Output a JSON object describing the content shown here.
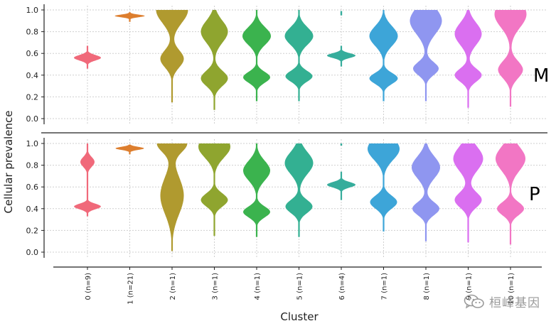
{
  "chart_data": {
    "type": "violin",
    "xlabel": "Cluster",
    "ylabel": "Cellular prevalence",
    "ylim": [
      0,
      1
    ],
    "yticks": [
      "0.0",
      "0.2",
      "0.4",
      "0.6",
      "0.8",
      "1.0"
    ],
    "categories": [
      "0 (n=9)",
      "1 (n=21)",
      "2 (n=1)",
      "3 (n=1)",
      "4 (n=1)",
      "5 (n=1)",
      "6 (n=4)",
      "7 (n=1)",
      "8 (n=1)",
      "9 (n=1)",
      "10 (n=1)"
    ],
    "colors": [
      "#f0697a",
      "#dd7e2e",
      "#b09a2f",
      "#8fa52f",
      "#3bb34e",
      "#33b092",
      "#36ad9c",
      "#3da5d8",
      "#8f96f0",
      "#da6ff0",
      "#f276c4"
    ],
    "panels": [
      {
        "label": "M",
        "violins": [
          {
            "modes": [
              {
                "c": 0.56,
                "s": 0.025,
                "w": 0.38
              }
            ],
            "range": [
              0.46,
              0.67
            ]
          },
          {
            "modes": [
              {
                "c": 0.945,
                "s": 0.012,
                "w": 0.42
              }
            ],
            "range": [
              0.89,
              0.98
            ]
          },
          {
            "modes": [
              {
                "c": 0.55,
                "s": 0.08,
                "w": 0.33
              },
              {
                "c": 1.0,
                "s": 0.12,
                "w": 0.45
              }
            ],
            "range": [
              0.15,
              1.0
            ]
          },
          {
            "modes": [
              {
                "c": 0.37,
                "s": 0.07,
                "w": 0.38
              },
              {
                "c": 0.8,
                "s": 0.1,
                "w": 0.38
              }
            ],
            "range": [
              0.08,
              1.0
            ]
          },
          {
            "modes": [
              {
                "c": 0.38,
                "s": 0.05,
                "w": 0.38
              },
              {
                "c": 0.76,
                "s": 0.08,
                "w": 0.4
              }
            ],
            "range": [
              0.16,
              1.0
            ]
          },
          {
            "modes": [
              {
                "c": 0.39,
                "s": 0.05,
                "w": 0.38
              },
              {
                "c": 0.76,
                "s": 0.08,
                "w": 0.4
              }
            ],
            "range": [
              0.16,
              1.0
            ]
          },
          {
            "modes": [
              {
                "c": 0.58,
                "s": 0.022,
                "w": 0.4
              }
            ],
            "range": [
              0.48,
              0.67
            ],
            "extra": [
              0.95,
              0.99
            ]
          },
          {
            "modes": [
              {
                "c": 0.37,
                "s": 0.05,
                "w": 0.4
              },
              {
                "c": 0.76,
                "s": 0.09,
                "w": 0.4
              }
            ],
            "range": [
              0.16,
              1.0
            ]
          },
          {
            "modes": [
              {
                "c": 0.46,
                "s": 0.06,
                "w": 0.36
              },
              {
                "c": 0.9,
                "s": 0.12,
                "w": 0.45
              }
            ],
            "range": [
              0.16,
              1.0
            ]
          },
          {
            "modes": [
              {
                "c": 0.4,
                "s": 0.06,
                "w": 0.38
              },
              {
                "c": 0.78,
                "s": 0.1,
                "w": 0.38
              }
            ],
            "range": [
              0.1,
              1.0
            ]
          },
          {
            "modes": [
              {
                "c": 0.45,
                "s": 0.08,
                "w": 0.35
              },
              {
                "c": 0.96,
                "s": 0.12,
                "w": 0.45
              }
            ],
            "range": [
              0.11,
              1.0
            ]
          }
        ]
      },
      {
        "label": "P",
        "violins": [
          {
            "modes": [
              {
                "c": 0.42,
                "s": 0.025,
                "w": 0.38
              },
              {
                "c": 0.83,
                "s": 0.045,
                "w": 0.2
              }
            ],
            "range": [
              0.33,
              1.0
            ]
          },
          {
            "modes": [
              {
                "c": 0.955,
                "s": 0.014,
                "w": 0.4
              }
            ],
            "range": [
              0.9,
              0.99
            ]
          },
          {
            "modes": [
              {
                "c": 0.52,
                "s": 0.17,
                "w": 0.33
              },
              {
                "c": 1.0,
                "s": 0.08,
                "w": 0.42
              }
            ],
            "range": [
              0.01,
              1.0
            ]
          },
          {
            "modes": [
              {
                "c": 0.48,
                "s": 0.06,
                "w": 0.38
              },
              {
                "c": 0.97,
                "s": 0.1,
                "w": 0.45
              }
            ],
            "range": [
              0.15,
              1.0
            ]
          },
          {
            "modes": [
              {
                "c": 0.37,
                "s": 0.05,
                "w": 0.38
              },
              {
                "c": 0.75,
                "s": 0.09,
                "w": 0.38
              }
            ],
            "range": [
              0.14,
              1.0
            ]
          },
          {
            "modes": [
              {
                "c": 0.42,
                "s": 0.06,
                "w": 0.38
              },
              {
                "c": 0.82,
                "s": 0.1,
                "w": 0.4
              }
            ],
            "range": [
              0.14,
              1.0
            ]
          },
          {
            "modes": [
              {
                "c": 0.62,
                "s": 0.025,
                "w": 0.4
              }
            ],
            "range": [
              0.48,
              0.74
            ],
            "extra": [
              0.98,
              1.0
            ]
          },
          {
            "modes": [
              {
                "c": 0.46,
                "s": 0.06,
                "w": 0.38
              },
              {
                "c": 0.95,
                "s": 0.1,
                "w": 0.45
              }
            ],
            "range": [
              0.19,
              1.0
            ]
          },
          {
            "modes": [
              {
                "c": 0.4,
                "s": 0.06,
                "w": 0.38
              },
              {
                "c": 0.78,
                "s": 0.1,
                "w": 0.4
              }
            ],
            "range": [
              0.1,
              1.0
            ]
          },
          {
            "modes": [
              {
                "c": 0.48,
                "s": 0.07,
                "w": 0.38
              },
              {
                "c": 0.86,
                "s": 0.11,
                "w": 0.42
              }
            ],
            "range": [
              0.09,
              1.0
            ]
          },
          {
            "modes": [
              {
                "c": 0.4,
                "s": 0.06,
                "w": 0.38
              },
              {
                "c": 0.86,
                "s": 0.11,
                "w": 0.42
              }
            ],
            "range": [
              0.07,
              1.0
            ]
          }
        ]
      }
    ],
    "grid": true,
    "watermark": {
      "icon": "wechat-icon",
      "text": "桓峰基因"
    }
  }
}
